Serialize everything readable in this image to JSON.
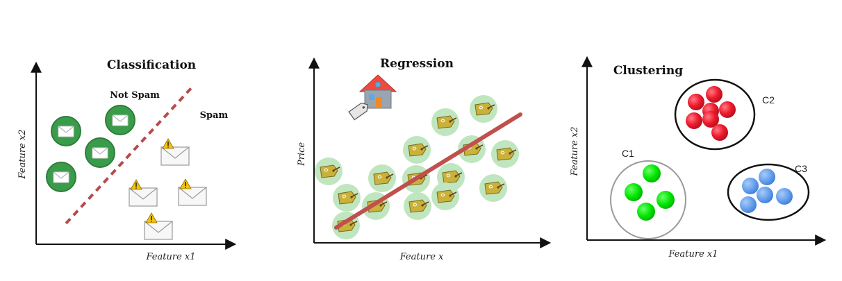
{
  "panels": {
    "classification": {
      "title": "Classification",
      "class_a_label": "Not Spam",
      "class_b_label": "Spam",
      "xlabel": "Feature x1",
      "ylabel": "Feature x2",
      "class_a_color": "#3a9c4a",
      "boundary_color": "#b84a4a"
    },
    "regression": {
      "title": "Regression",
      "xlabel": "Feature x",
      "ylabel": "Price",
      "line_color": "#c0504d",
      "point_halo_color": "#bfe6bf"
    },
    "clustering": {
      "title": "Clustering",
      "xlabel": "Feature x1",
      "ylabel": "Feature x2",
      "clusters": [
        {
          "name": "C1",
          "color": "#00e600"
        },
        {
          "name": "C2",
          "color": "#ee1b2e"
        },
        {
          "name": "C3",
          "color": "#6aa3ef"
        }
      ]
    }
  }
}
